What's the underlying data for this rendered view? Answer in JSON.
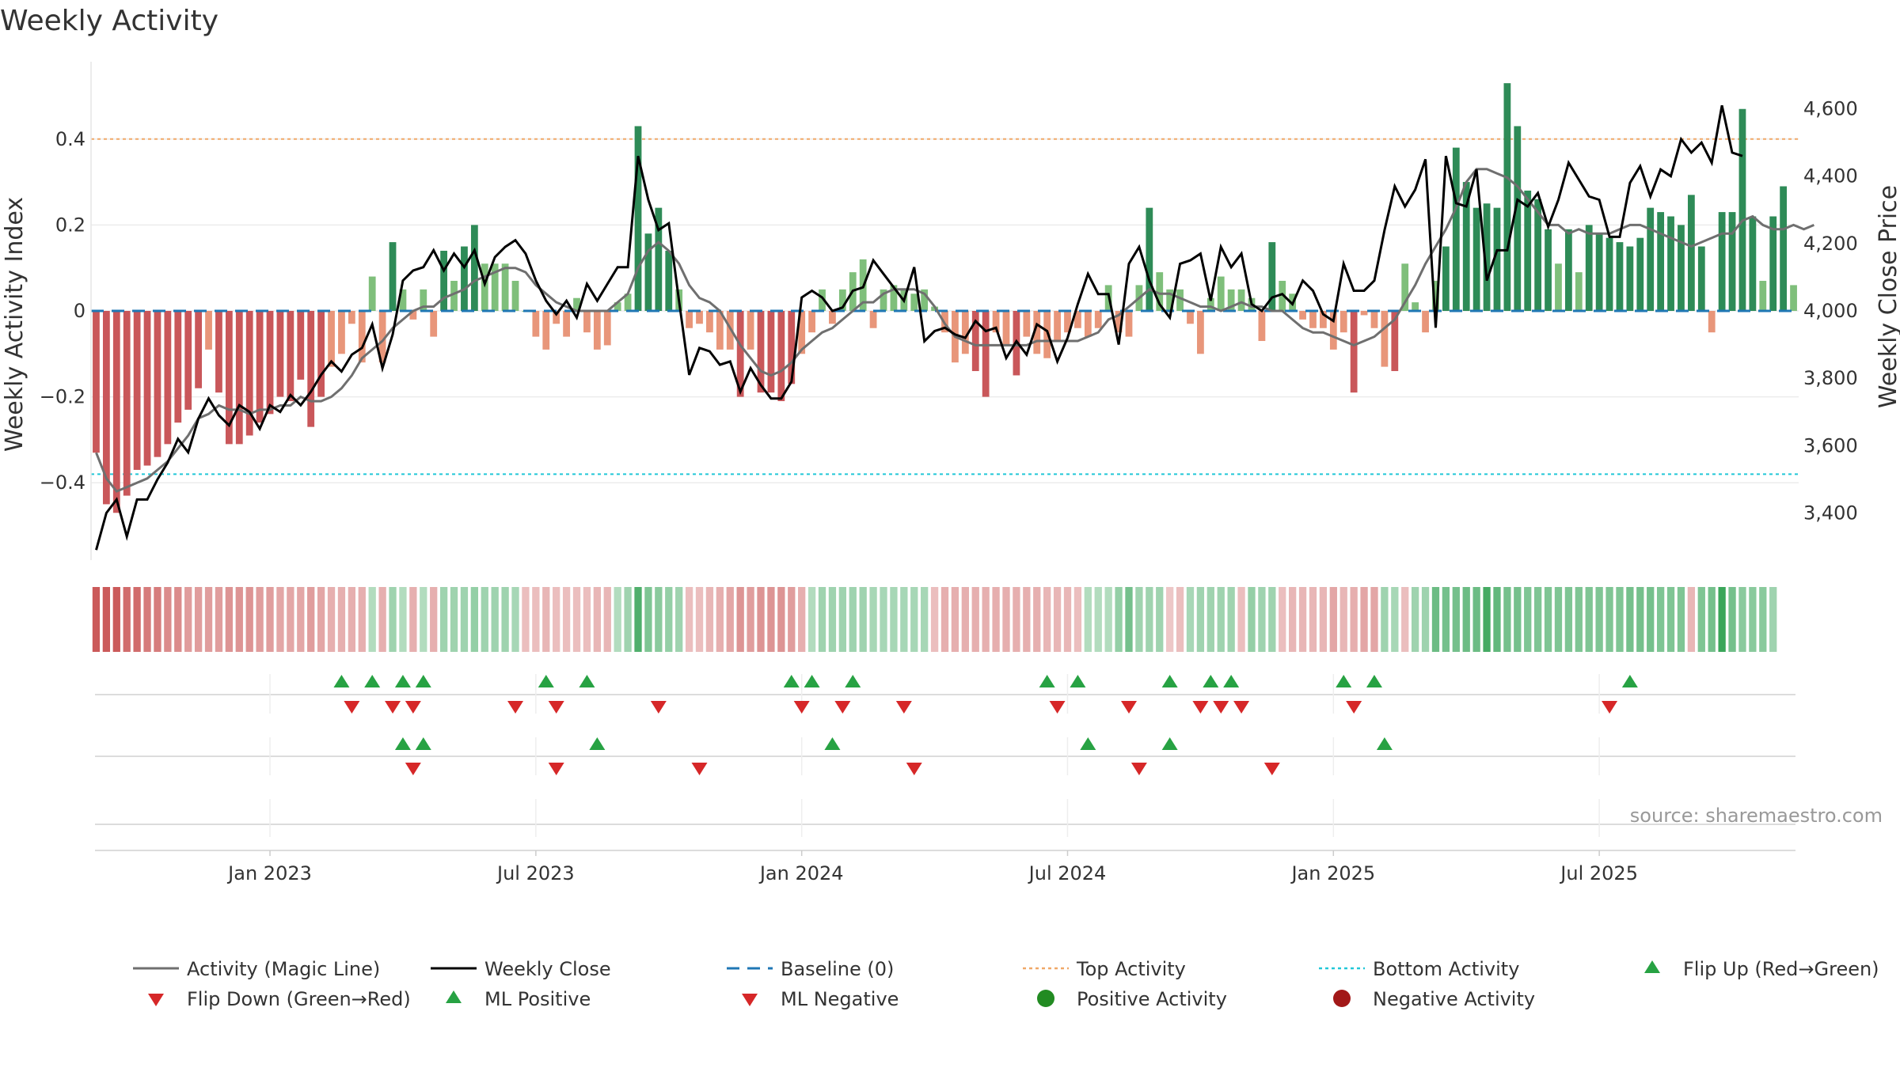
{
  "title": "Weekly Activity",
  "source": "source: sharemaestro.com",
  "colors": {
    "pos_strong": "#2e8b57",
    "pos_light": "#7fbf7b",
    "neg_strong": "#c9575a",
    "neg_light": "#e8967a",
    "magic_line": "#6f6f6f",
    "close_line": "#000000",
    "baseline": "#1f77b4",
    "top_line": "#f0a868",
    "bottom_line": "#22c7d8",
    "marker_up": "#27a243",
    "marker_down": "#d62728",
    "dot_pos": "#228b22",
    "dot_neg": "#a21818"
  },
  "chart_data": {
    "type": "bar+line",
    "title": "Weekly Activity",
    "ylabel_left": "Weekly Activity Index",
    "ylabel_right": "Weekly Close Price",
    "ylim_left": [
      -0.58,
      0.58
    ],
    "ylim_right": [
      3260,
      4740
    ],
    "yticks_left": [
      0.4,
      0.2,
      0,
      -0.2,
      -0.4
    ],
    "ytick_labels_left": [
      "0.4",
      "0.2",
      "0",
      "−0.2",
      "−0.4"
    ],
    "yticks_right": [
      4600,
      4400,
      4200,
      4000,
      3800,
      3600,
      3400
    ],
    "ytick_labels_right": [
      "4,600",
      "4,400",
      "4,200",
      "4,000",
      "3,800",
      "3,600",
      "3,400"
    ],
    "x_start": "2022-09-05",
    "x_end": "2025-09-29",
    "xtick_labels": [
      "Jan 2023",
      "Jul 2023",
      "Jan 2024",
      "Jul 2024",
      "Jan 2025",
      "Jul 2025"
    ],
    "xtick_weeks": [
      17,
      43,
      69,
      95,
      121,
      147
    ],
    "top_activity": 0.4,
    "bottom_activity": -0.38,
    "baseline": 0,
    "activity": [
      -0.33,
      -0.45,
      -0.47,
      -0.43,
      -0.37,
      -0.36,
      -0.34,
      -0.31,
      -0.26,
      -0.23,
      -0.18,
      -0.09,
      -0.19,
      -0.31,
      -0.31,
      -0.29,
      -0.26,
      -0.24,
      -0.2,
      -0.21,
      -0.16,
      -0.27,
      -0.2,
      -0.13,
      -0.1,
      -0.03,
      -0.12,
      0.08,
      -0.12,
      0.16,
      0.05,
      -0.02,
      0.05,
      -0.06,
      0.14,
      0.07,
      0.15,
      0.2,
      0.11,
      0.11,
      0.11,
      0.07,
      0,
      -0.06,
      -0.09,
      -0.03,
      -0.06,
      0.03,
      -0.05,
      -0.09,
      -0.08,
      0.02,
      0.04,
      0.43,
      0.18,
      0.24,
      0.14,
      0.05,
      -0.04,
      -0.03,
      -0.05,
      -0.09,
      -0.09,
      -0.2,
      -0.09,
      -0.19,
      -0.19,
      -0.21,
      -0.17,
      -0.1,
      -0.05,
      0.05,
      -0.03,
      0.05,
      0.09,
      0.12,
      -0.04,
      0.05,
      0.06,
      0.05,
      0.04,
      0.05,
      0.01,
      -0.05,
      -0.12,
      -0.1,
      -0.14,
      -0.2,
      -0.05,
      -0.08,
      -0.15,
      -0.06,
      -0.1,
      -0.11,
      -0.07,
      -0.05,
      -0.04,
      -0.06,
      -0.04,
      0.06,
      -0.05,
      -0.06,
      0.06,
      0.24,
      0.09,
      0.05,
      0.05,
      -0.03,
      -0.1,
      0.03,
      0.08,
      0.05,
      0.05,
      0.03,
      -0.07,
      0.16,
      0.07,
      0.04,
      -0.02,
      -0.04,
      -0.04,
      -0.09,
      -0.05,
      -0.19,
      -0.01,
      -0.04,
      -0.13,
      -0.14,
      0.11,
      0.02,
      -0.05,
      0.07,
      0.15,
      0.38,
      0.3,
      0.24,
      0.25,
      0.24,
      0.53,
      0.43,
      0.28,
      0.26,
      0.19,
      0.11,
      0.19,
      0.09,
      0.2,
      0.18,
      0.17,
      0.16,
      0.15,
      0.17,
      0.24,
      0.23,
      0.22,
      0.2,
      0.27,
      0.15,
      -0.05,
      0.23,
      0.23,
      0.47,
      0.22,
      0.07,
      0.22,
      0.29,
      0.06
    ],
    "weekly_close": [
      3290,
      3400,
      3440,
      3330,
      3440,
      3440,
      3500,
      3550,
      3620,
      3580,
      3680,
      3740,
      3690,
      3660,
      3720,
      3700,
      3650,
      3720,
      3700,
      3750,
      3720,
      3760,
      3810,
      3850,
      3820,
      3870,
      3890,
      3960,
      3830,
      3930,
      4090,
      4120,
      4130,
      4180,
      4120,
      4170,
      4130,
      4180,
      4080,
      4160,
      4190,
      4210,
      4170,
      4090,
      4030,
      3990,
      4030,
      3980,
      4080,
      4030,
      4080,
      4130,
      4130,
      4460,
      4330,
      4240,
      4260,
      4030,
      3810,
      3890,
      3880,
      3840,
      3850,
      3760,
      3830,
      3780,
      3740,
      3740,
      3790,
      4040,
      4060,
      4040,
      4000,
      4010,
      4060,
      4070,
      4150,
      4110,
      4070,
      4030,
      4130,
      3910,
      3940,
      3950,
      3930,
      3920,
      3970,
      3940,
      3950,
      3860,
      3910,
      3870,
      3960,
      3940,
      3850,
      3920,
      4020,
      4110,
      4050,
      4050,
      3900,
      4140,
      4190,
      4090,
      4020,
      3980,
      4140,
      4150,
      4170,
      4030,
      4190,
      4130,
      4170,
      4020,
      4000,
      4040,
      4050,
      4020,
      4090,
      4060,
      3990,
      3970,
      4140,
      4060,
      4060,
      4090,
      4240,
      4370,
      4310,
      4360,
      4450,
      3950,
      4460,
      4320,
      4310,
      4420,
      4090,
      4180,
      4180,
      4330,
      4310,
      4350,
      4250,
      4330,
      4440,
      4390,
      4340,
      4330,
      4220,
      4220,
      4380,
      4430,
      4340,
      4420,
      4400,
      4510,
      4470,
      4500,
      4440,
      4610,
      4470,
      4460
    ],
    "magic_line": [
      -0.33,
      -0.39,
      -0.42,
      -0.41,
      -0.4,
      -0.39,
      -0.37,
      -0.35,
      -0.32,
      -0.29,
      -0.25,
      -0.24,
      -0.22,
      -0.23,
      -0.23,
      -0.24,
      -0.23,
      -0.23,
      -0.22,
      -0.22,
      -0.2,
      -0.21,
      -0.21,
      -0.2,
      -0.18,
      -0.15,
      -0.11,
      -0.09,
      -0.07,
      -0.04,
      -0.02,
      0,
      0.01,
      0.01,
      0.03,
      0.04,
      0.05,
      0.07,
      0.08,
      0.09,
      0.1,
      0.1,
      0.09,
      0.06,
      0.04,
      0.02,
      0.01,
      0,
      0,
      0,
      0,
      0.02,
      0.04,
      0.1,
      0.14,
      0.16,
      0.14,
      0.11,
      0.06,
      0.03,
      0.02,
      0,
      -0.04,
      -0.08,
      -0.11,
      -0.14,
      -0.15,
      -0.14,
      -0.12,
      -0.09,
      -0.07,
      -0.05,
      -0.04,
      -0.02,
      0,
      0.02,
      0.02,
      0.04,
      0.05,
      0.05,
      0.05,
      0.04,
      0.01,
      -0.03,
      -0.06,
      -0.07,
      -0.08,
      -0.08,
      -0.08,
      -0.08,
      -0.08,
      -0.08,
      -0.07,
      -0.07,
      -0.07,
      -0.07,
      -0.07,
      -0.06,
      -0.05,
      -0.02,
      -0.01,
      0.01,
      0.03,
      0.05,
      0.04,
      0.04,
      0.03,
      0.02,
      0.01,
      0.01,
      0,
      0.01,
      0.02,
      0.01,
      0.01,
      0,
      0,
      -0.02,
      -0.04,
      -0.05,
      -0.05,
      -0.06,
      -0.07,
      -0.08,
      -0.07,
      -0.06,
      -0.04,
      -0.02,
      0.02,
      0.06,
      0.11,
      0.15,
      0.19,
      0.24,
      0.3,
      0.33,
      0.33,
      0.32,
      0.31,
      0.29,
      0.26,
      0.23,
      0.2,
      0.2,
      0.18,
      0.19,
      0.18,
      0.18,
      0.18,
      0.19,
      0.2,
      0.2,
      0.19,
      0.18,
      0.17,
      0.16,
      0.15,
      0.16,
      0.17,
      0.18,
      0.18,
      0.21,
      0.22,
      0.2,
      0.19,
      0.19,
      0.2,
      0.19,
      0.2
    ],
    "heat_strip": [
      -0.8,
      -0.8,
      -0.8,
      -0.7,
      -0.7,
      -0.6,
      -0.6,
      -0.5,
      -0.5,
      -0.4,
      -0.4,
      -0.4,
      -0.4,
      -0.45,
      -0.45,
      -0.45,
      -0.4,
      -0.4,
      -0.35,
      -0.35,
      -0.35,
      -0.4,
      -0.35,
      -0.3,
      -0.3,
      -0.3,
      -0.3,
      0.2,
      -0.3,
      0.3,
      0.2,
      -0.3,
      0.2,
      -0.3,
      0.3,
      0.3,
      0.3,
      0.35,
      0.3,
      0.3,
      0.3,
      0.25,
      -0.2,
      -0.2,
      -0.25,
      -0.2,
      -0.2,
      -0.2,
      -0.2,
      -0.25,
      -0.25,
      0.2,
      0.3,
      0.7,
      0.45,
      0.4,
      0.35,
      0.3,
      -0.2,
      -0.2,
      -0.25,
      -0.3,
      -0.35,
      -0.45,
      -0.4,
      -0.45,
      -0.45,
      -0.45,
      -0.4,
      -0.3,
      0.2,
      0.3,
      0.3,
      0.3,
      0.3,
      0.3,
      0.25,
      0.25,
      0.25,
      0.25,
      0.25,
      0.25,
      -0.2,
      -0.3,
      -0.3,
      -0.3,
      -0.3,
      -0.3,
      -0.3,
      -0.3,
      -0.3,
      -0.3,
      -0.3,
      -0.25,
      -0.25,
      -0.25,
      -0.2,
      0.2,
      0.2,
      0.2,
      0.35,
      0.5,
      0.3,
      0.3,
      0.3,
      -0.15,
      -0.2,
      0.25,
      0.3,
      0.3,
      0.3,
      0.3,
      -0.2,
      0.35,
      0.3,
      0.3,
      -0.2,
      -0.25,
      -0.25,
      -0.25,
      -0.25,
      -0.35,
      -0.25,
      -0.3,
      -0.35,
      -0.35,
      0.3,
      0.25,
      -0.2,
      0.3,
      0.3,
      0.55,
      0.5,
      0.5,
      0.55,
      0.55,
      0.75,
      0.6,
      0.5,
      0.5,
      0.45,
      0.45,
      0.45,
      0.45,
      0.45,
      0.45,
      0.45,
      0.45,
      0.45,
      0.45,
      0.5,
      0.5,
      0.5,
      0.45,
      0.45,
      0.45,
      -0.25,
      0.45,
      0.5,
      0.8,
      0.5,
      0.4,
      0.4,
      0.4,
      0.3
    ],
    "flip_up_weeks": [
      24,
      27,
      30,
      32,
      44,
      48,
      68,
      70,
      74,
      93,
      96,
      105,
      109,
      111,
      122,
      125,
      150
    ],
    "flip_down_weeks": [
      25,
      29,
      31,
      41,
      45,
      55,
      69,
      73,
      79,
      94,
      101,
      108,
      110,
      112,
      123,
      148
    ],
    "ml_positive_weeks": [
      30,
      32,
      49,
      72,
      97,
      105,
      126
    ],
    "ml_negative_weeks": [
      31,
      45,
      59,
      80,
      102,
      115
    ]
  },
  "legend": [
    {
      "key": "magic",
      "label": "Activity (Magic Line)"
    },
    {
      "key": "close",
      "label": "Weekly Close"
    },
    {
      "key": "baseline",
      "label": "Baseline (0)"
    },
    {
      "key": "top",
      "label": "Top Activity"
    },
    {
      "key": "bottom",
      "label": "Bottom Activity"
    },
    {
      "key": "flipup",
      "label": "Flip Up (Red→Green)"
    },
    {
      "key": "flipdown",
      "label": "Flip Down (Green→Red)"
    },
    {
      "key": "mlpos",
      "label": "ML Positive"
    },
    {
      "key": "mlneg",
      "label": "ML Negative"
    },
    {
      "key": "posact",
      "label": "Positive Activity"
    },
    {
      "key": "negact",
      "label": "Negative Activity"
    }
  ]
}
